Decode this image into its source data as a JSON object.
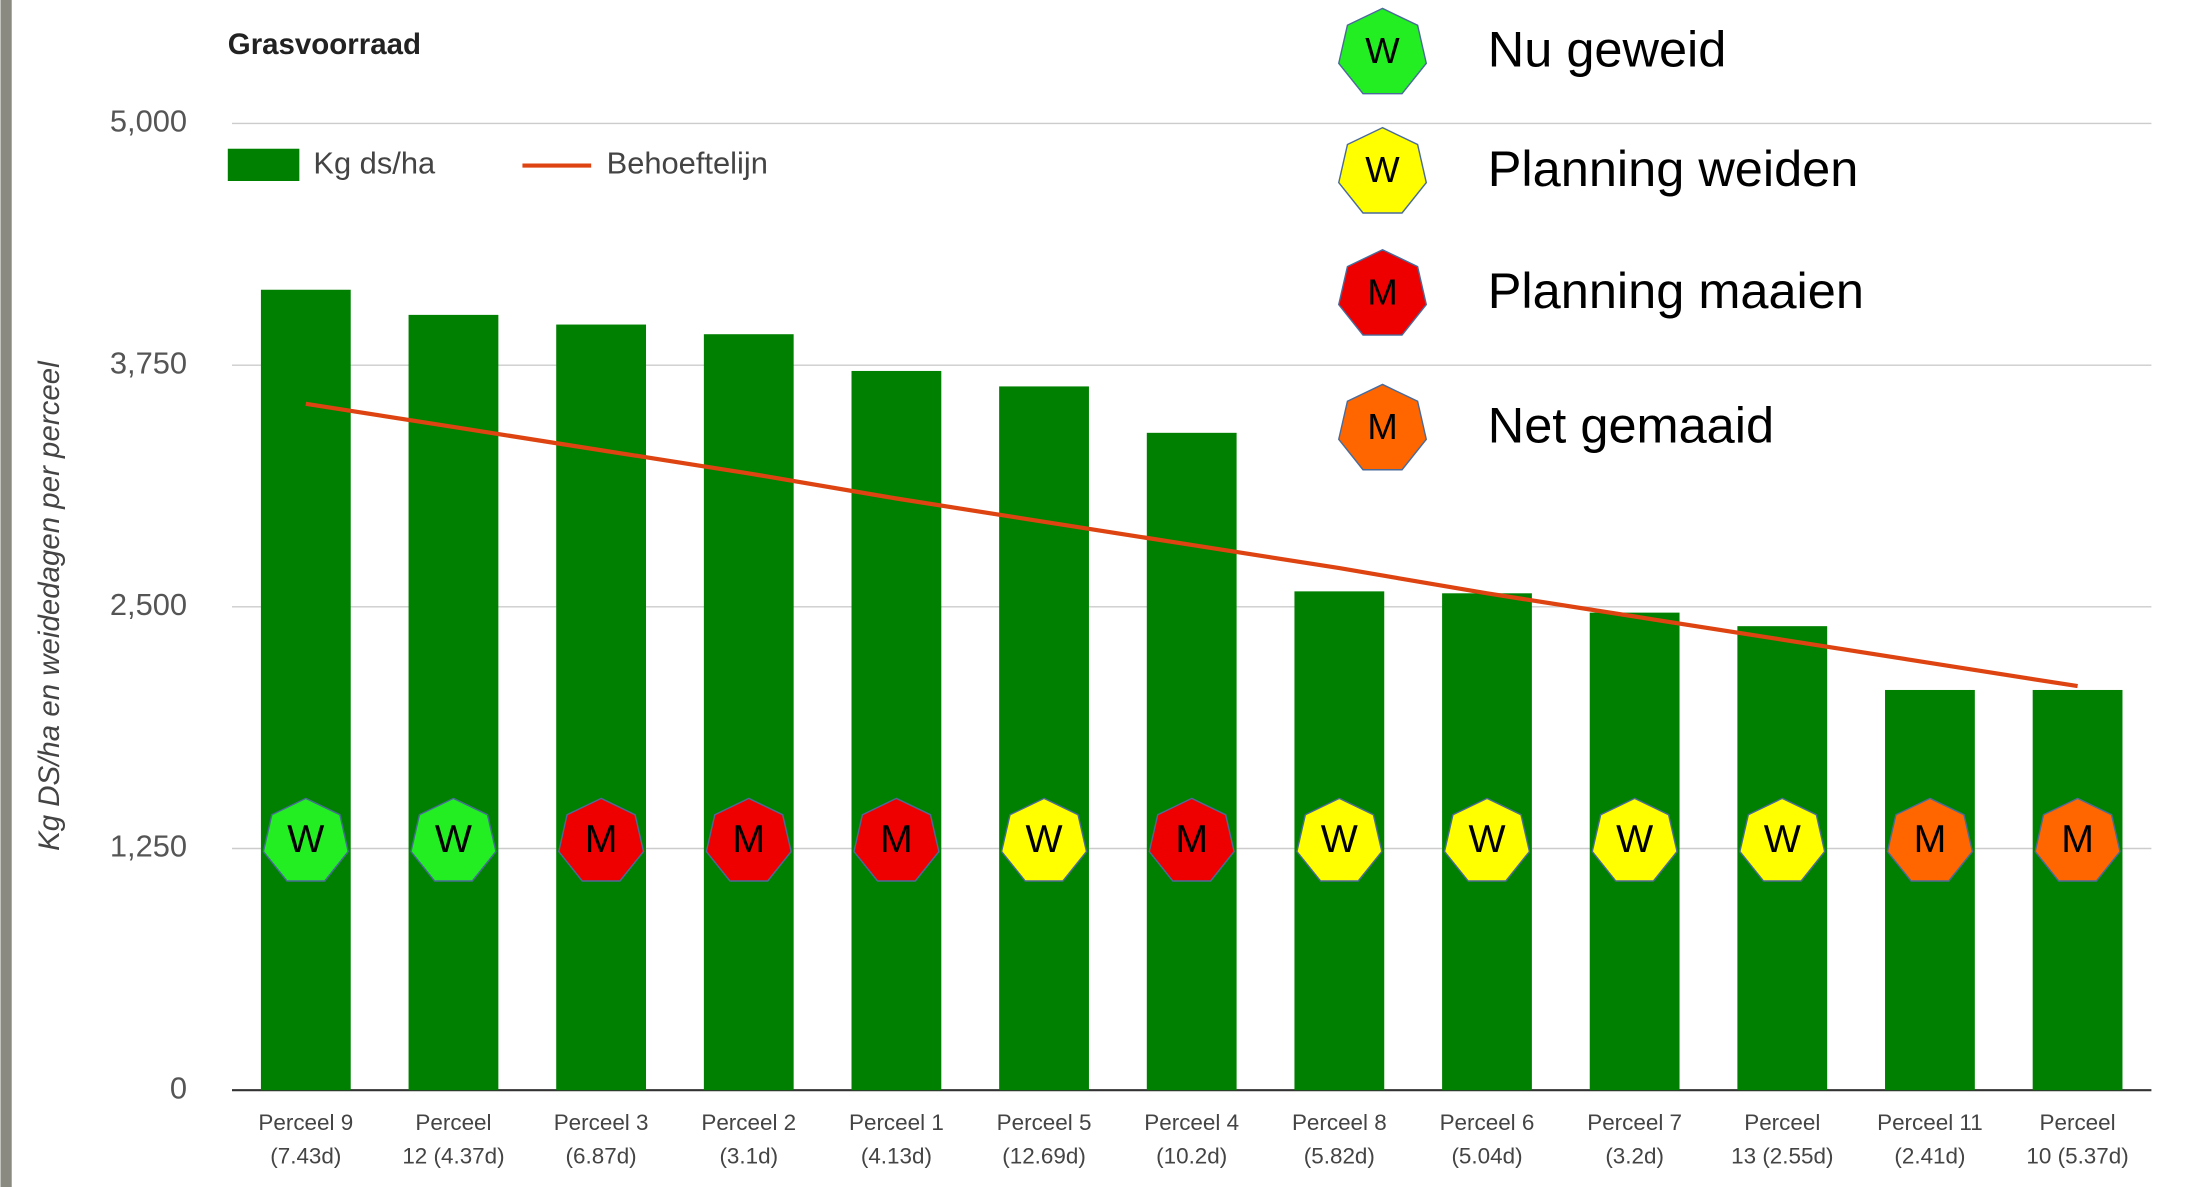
{
  "chart_data": {
    "type": "bar",
    "title": "Grasvoorraad",
    "y_label": "Kg DS/ha en weidedagen per perceel",
    "categories": [
      "Perceel 9\n(7.43d)",
      "Perceel\n12 (4.37d)",
      "Perceel 3\n(6.87d)",
      "Perceel 2\n(3.1d)",
      "Perceel 1\n(4.13d)",
      "Perceel 5\n(12.69d)",
      "Perceel 4\n(10.2d)",
      "Perceel 8\n(5.82d)",
      "Perceel 6\n(5.04d)",
      "Perceel 7\n(3.2d)",
      "Perceel\n13 (2.55d)",
      "Perceel 11\n(2.41d)",
      "Perceel\n10 (5.37d)"
    ],
    "series": [
      {
        "name": "Kg ds/ha",
        "type": "bar",
        "color": "#008000",
        "values": [
          4140,
          4010,
          3960,
          3910,
          3720,
          3640,
          3400,
          2580,
          2570,
          2470,
          2400,
          2070,
          2070
        ]
      },
      {
        "name": "Behoeftelijn",
        "type": "line",
        "color": "#dd4411",
        "values": [
          3550,
          3430,
          3310,
          3190,
          3060,
          2940,
          2820,
          2700,
          2570,
          2450,
          2330,
          2210,
          2090
        ]
      }
    ],
    "ylim": [
      0,
      5000
    ],
    "yticks": [
      0,
      {
        "value": 1250,
        "label": "1,250"
      },
      {
        "value": 2500,
        "label": "2,500"
      },
      {
        "value": 3750,
        "label": "3,750"
      },
      {
        "value": 5000,
        "label": "5,000"
      }
    ],
    "grid": true,
    "badges": [
      {
        "letter": "W",
        "color": "#22ee22"
      },
      {
        "letter": "W",
        "color": "#22ee22"
      },
      {
        "letter": "M",
        "color": "#ee0000"
      },
      {
        "letter": "M",
        "color": "#ee0000"
      },
      {
        "letter": "M",
        "color": "#ee0000"
      },
      {
        "letter": "W",
        "color": "#ffff00"
      },
      {
        "letter": "M",
        "color": "#ee0000"
      },
      {
        "letter": "W",
        "color": "#ffff00"
      },
      {
        "letter": "W",
        "color": "#ffff00"
      },
      {
        "letter": "W",
        "color": "#ffff00"
      },
      {
        "letter": "W",
        "color": "#ffff00"
      },
      {
        "letter": "M",
        "color": "#ff6600"
      },
      {
        "letter": "M",
        "color": "#ff6600"
      }
    ],
    "status_legend": [
      {
        "letter": "W",
        "color": "#22ee22",
        "label": "Nu geweid"
      },
      {
        "letter": "W",
        "color": "#ffff00",
        "label": "Planning weiden"
      },
      {
        "letter": "M",
        "color": "#ee0000",
        "label": "Planning maaien"
      },
      {
        "letter": "M",
        "color": "#ff6600",
        "label": "Net gemaaid"
      }
    ]
  }
}
